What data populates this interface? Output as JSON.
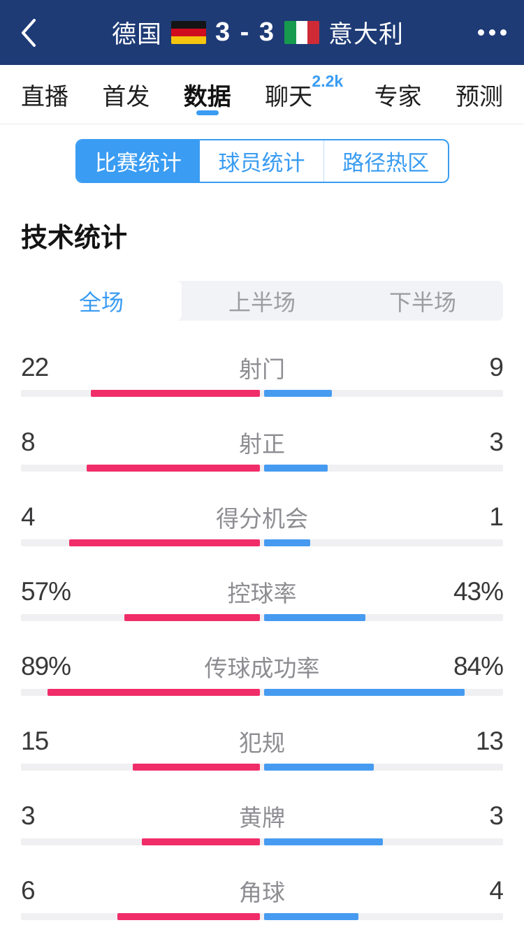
{
  "header": {
    "home_team": "德国",
    "score": "3 - 3",
    "away_team": "意大利"
  },
  "nav_tabs": {
    "live": "直播",
    "lineup": "首发",
    "data": "数据",
    "chat": "聊天",
    "chat_badge": "2.2k",
    "expert": "专家",
    "predict": "预测"
  },
  "stat_type_tabs": {
    "match": "比赛统计",
    "player": "球员统计",
    "heatmap": "路径热区"
  },
  "section_title": "技术统计",
  "period_tabs": {
    "full": "全场",
    "first_half": "上半场",
    "second_half": "下半场"
  },
  "chart_data": {
    "type": "bar",
    "title": "技术统计 全场 德国 vs 意大利",
    "categories": [
      "射门",
      "射正",
      "得分机会",
      "控球率",
      "传球成功率",
      "犯规",
      "黄牌",
      "角球"
    ],
    "series": [
      {
        "name": "德国",
        "values": [
          "22",
          "8",
          "4",
          "57%",
          "89%",
          "15",
          "3",
          "6"
        ]
      },
      {
        "name": "意大利",
        "values": [
          "9",
          "3",
          "1",
          "43%",
          "84%",
          "13",
          "3",
          "4"
        ]
      }
    ]
  },
  "stats": [
    {
      "label": "射门",
      "home": "22",
      "away": "9"
    },
    {
      "label": "射正",
      "home": "8",
      "away": "3"
    },
    {
      "label": "得分机会",
      "home": "4",
      "away": "1"
    },
    {
      "label": "控球率",
      "home": "57%",
      "away": "43%"
    },
    {
      "label": "传球成功率",
      "home": "89%",
      "away": "84%"
    },
    {
      "label": "犯规",
      "home": "15",
      "away": "13"
    },
    {
      "label": "黄牌",
      "home": "3",
      "away": "3"
    },
    {
      "label": "角球",
      "home": "6",
      "away": "4"
    }
  ],
  "colors": {
    "header_bg": "#1e3b76",
    "accent": "#3a9cf2",
    "home_bar": "#f02d69",
    "away_bar": "#469bf0",
    "flag_germany": [
      "#141414",
      "#d00c1f",
      "#f5c50f"
    ],
    "flag_italy": [
      "#169b4e",
      "#ffffff",
      "#ce2b37"
    ]
  }
}
